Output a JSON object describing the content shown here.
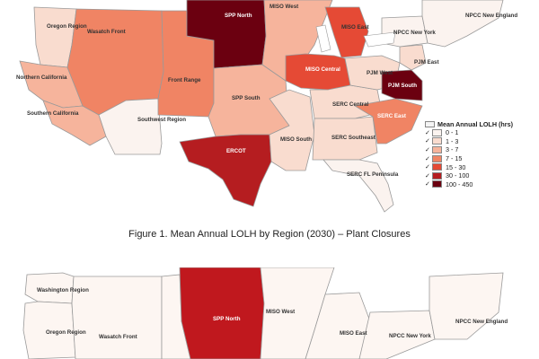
{
  "figure1": {
    "caption": "Figure 1. Mean Annual LOLH by Region (2030) – Plant Closures",
    "labels": {
      "spp_north": "SPP North",
      "miso_west": "MISO West",
      "npcc_new_england": "NPCC New England",
      "oregon": "Oregon Region",
      "wasatch": "Wasatch Front",
      "miso_east": "MISO East",
      "npcc_new_york": "NPCC New York",
      "pjm_east": "PJM East",
      "miso_central": "MISO Central",
      "pjm_west": "PJM West",
      "northern_california": "Northern California",
      "front_range": "Front Range",
      "pjm_south": "PJM South",
      "spp_south": "SPP South",
      "serc_central": "SERC Central",
      "southern_california": "Southern California",
      "southwest": "Southwest Region",
      "serc_east": "SERC East",
      "miso_south": "MISO South",
      "serc_southeast": "SERC Southeast",
      "ercot": "ERCOT",
      "serc_fl": "SERC FL Peninsula"
    },
    "legend": {
      "title": "Mean Annual LOLH (hrs)",
      "items": [
        {
          "label": "0 - 1",
          "color": "#fbf3ef"
        },
        {
          "label": "1 - 3",
          "color": "#f9dccf"
        },
        {
          "label": "3 - 7",
          "color": "#f6b49c"
        },
        {
          "label": "7 - 15",
          "color": "#f08464"
        },
        {
          "label": "15 - 30",
          "color": "#e54a35"
        },
        {
          "label": "30 - 100",
          "color": "#b51d20"
        },
        {
          "label": "100 - 450",
          "color": "#6b0010"
        }
      ]
    }
  },
  "figure2": {
    "labels": {
      "washington": "Washington Region",
      "spp_north": "SPP North",
      "miso_west": "MISO West",
      "npcc_new_england": "NPCC New England",
      "oregon": "Oregon Region",
      "wasatch": "Wasatch Front",
      "miso_east": "MISO East",
      "npcc_new_york": "NPCC New York"
    }
  },
  "colors": {
    "c0": "#fbf3ef",
    "c1": "#f9dccf",
    "c2": "#f6b49c",
    "c3": "#f08464",
    "c4": "#e54a35",
    "c5": "#b51d20",
    "c6": "#6b0010",
    "c2_red": "#c0181e",
    "c2_white": "#fdf6f2"
  }
}
